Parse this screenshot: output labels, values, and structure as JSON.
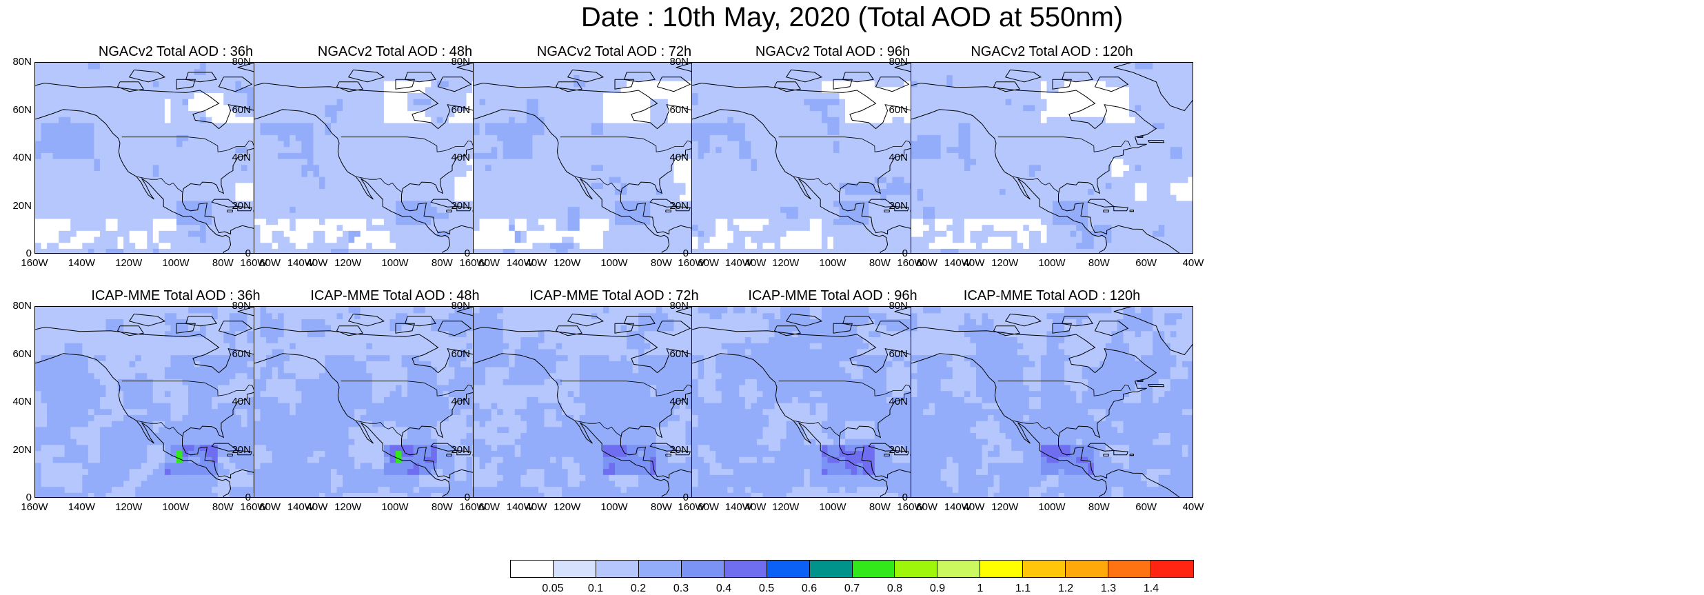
{
  "title": "Date : 10th May, 2020 (Total AOD at 550nm)",
  "map_extent": {
    "lon": [
      -160,
      -40
    ],
    "lat": [
      0,
      80
    ]
  },
  "y_ticks": [
    "80N",
    "60N",
    "40N",
    "20N",
    "0"
  ],
  "x_ticks": [
    "160W",
    "140W",
    "120W",
    "100W",
    "80W",
    "60W",
    "40W"
  ],
  "panels": [
    {
      "title": "NGACv2 Total AOD : 36h",
      "model": "NGACv2",
      "lead": "36h"
    },
    {
      "title": "NGACv2 Total AOD : 48h",
      "model": "NGACv2",
      "lead": "48h"
    },
    {
      "title": "NGACv2 Total AOD : 72h",
      "model": "NGACv2",
      "lead": "72h"
    },
    {
      "title": "NGACv2 Total AOD : 96h",
      "model": "NGACv2",
      "lead": "96h"
    },
    {
      "title": "NGACv2 Total AOD : 120h",
      "model": "NGACv2",
      "lead": "120h"
    },
    {
      "title": "ICAP-MME Total AOD : 36h",
      "model": "ICAP-MME",
      "lead": "36h"
    },
    {
      "title": "ICAP-MME Total AOD : 48h",
      "model": "ICAP-MME",
      "lead": "48h"
    },
    {
      "title": "ICAP-MME Total AOD : 72h",
      "model": "ICAP-MME",
      "lead": "72h"
    },
    {
      "title": "ICAP-MME Total AOD : 96h",
      "model": "ICAP-MME",
      "lead": "96h"
    },
    {
      "title": "ICAP-MME Total AOD : 120h",
      "model": "ICAP-MME",
      "lead": "120h"
    }
  ],
  "colorbar": {
    "labels": [
      "0.05",
      "0.1",
      "0.2",
      "0.3",
      "0.4",
      "0.5",
      "0.6",
      "0.7",
      "0.8",
      "0.9",
      "1",
      "1.1",
      "1.2",
      "1.3",
      "1.4"
    ],
    "colors": [
      "#ffffff",
      "#d6e1fd",
      "#b5c7fc",
      "#93adfa",
      "#7b93f5",
      "#6f6ef0",
      "#0b60f5",
      "#00938c",
      "#33e81a",
      "#9ef70a",
      "#cbf75f",
      "#ffff00",
      "#ffc60a",
      "#ffa90a",
      "#ff7312",
      "#ff2512"
    ]
  }
}
